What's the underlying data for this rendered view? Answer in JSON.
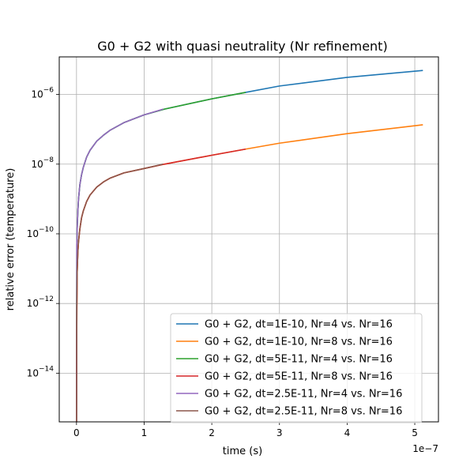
{
  "chart_data": {
    "type": "line",
    "title": "G0 + G2 with quasi neutrality (Nr refinement)",
    "xlabel": "time (s)",
    "ylabel": "relative error (temperature)",
    "x_offset_label": "1e−7",
    "xlim": [
      -2.55e-08,
      5.35e-07
    ],
    "ylim": [
      4e-16,
      1.2e-05
    ],
    "yscale": "log",
    "grid": true,
    "legend_position": "lower-right",
    "x_ticks": [
      {
        "value": 0,
        "label": "0"
      },
      {
        "value": 1e-07,
        "label": "1"
      },
      {
        "value": 2e-07,
        "label": "2"
      },
      {
        "value": 3e-07,
        "label": "3"
      },
      {
        "value": 4e-07,
        "label": "4"
      },
      {
        "value": 5e-07,
        "label": "5"
      }
    ],
    "y_ticks": [
      {
        "value": 1e-14,
        "base": "10",
        "exp": "−14"
      },
      {
        "value": 1e-12,
        "base": "10",
        "exp": "−12"
      },
      {
        "value": 1e-10,
        "base": "10",
        "exp": "−10"
      },
      {
        "value": 1e-08,
        "base": "10",
        "exp": "−8"
      },
      {
        "value": 1e-06,
        "base": "10",
        "exp": "−6"
      }
    ],
    "series": [
      {
        "name": "G0 + G2, dt=1E-10, Nr=4 vs. Nr=16",
        "color": "#1f77b4",
        "x": [
          0,
          5e-10,
          1e-09,
          2e-09,
          3e-09,
          5e-09,
          7.5e-09,
          1e-08,
          1.5e-08,
          2e-08,
          3e-08,
          4e-08,
          5e-08,
          7e-08,
          1e-07,
          1.3e-07,
          2e-07,
          2.5e-07,
          3e-07,
          4e-07,
          5.12e-07
        ],
        "y": [
          4e-16,
          5e-11,
          1.4e-10,
          4.5e-10,
          1e-09,
          2.6e-09,
          5e-09,
          8e-09,
          1.6e-08,
          2.5e-08,
          4.6e-08,
          6.8e-08,
          9.5e-08,
          1.55e-07,
          2.6e-07,
          3.8e-07,
          7.5e-07,
          1.15e-06,
          1.75e-06,
          3.1e-06,
          4.9e-06
        ]
      },
      {
        "name": "G0 + G2, dt=1E-10, Nr=8 vs. Nr=16",
        "color": "#ff7f0e",
        "x": [
          0,
          5e-10,
          1e-09,
          2e-09,
          3e-09,
          5e-09,
          7.5e-09,
          1e-08,
          1.5e-08,
          2e-08,
          3e-08,
          4e-08,
          5e-08,
          7e-08,
          1e-07,
          1.3e-07,
          2e-07,
          2.5e-07,
          3e-07,
          4e-07,
          5.12e-07
        ],
        "y": [
          4e-16,
          8e-13,
          8e-12,
          3e-11,
          6e-11,
          1.4e-10,
          2.9e-10,
          4.5e-10,
          8.5e-10,
          1.3e-09,
          2.2e-09,
          3.1e-09,
          4e-09,
          5.6e-09,
          7.5e-09,
          1e-08,
          1.8e-08,
          2.7e-08,
          4e-08,
          7.5e-08,
          1.35e-07
        ]
      },
      {
        "name": "G0 + G2, dt=5E-11, Nr=4 vs. Nr=16",
        "color": "#2ca02c",
        "x": [
          0,
          5e-10,
          1e-09,
          2e-09,
          3e-09,
          5e-09,
          7.5e-09,
          1e-08,
          1.5e-08,
          2e-08,
          3e-08,
          4e-08,
          5e-08,
          7e-08,
          1e-07,
          1.3e-07,
          2e-07,
          2.5e-07
        ],
        "y": [
          4e-16,
          5e-11,
          1.4e-10,
          4.5e-10,
          1e-09,
          2.6e-09,
          5e-09,
          8e-09,
          1.6e-08,
          2.5e-08,
          4.6e-08,
          6.8e-08,
          9.5e-08,
          1.55e-07,
          2.6e-07,
          3.8e-07,
          7.5e-07,
          1.15e-06
        ]
      },
      {
        "name": "G0 + G2, dt=5E-11, Nr=8 vs. Nr=16",
        "color": "#d62728",
        "x": [
          0,
          5e-10,
          1e-09,
          2e-09,
          3e-09,
          5e-09,
          7.5e-09,
          1e-08,
          1.5e-08,
          2e-08,
          3e-08,
          4e-08,
          5e-08,
          7e-08,
          1e-07,
          1.3e-07,
          2e-07,
          2.5e-07
        ],
        "y": [
          4e-16,
          8e-13,
          8e-12,
          3e-11,
          6e-11,
          1.4e-10,
          2.9e-10,
          4.5e-10,
          8.5e-10,
          1.3e-09,
          2.2e-09,
          3.1e-09,
          4e-09,
          5.6e-09,
          7.5e-09,
          1e-08,
          1.8e-08,
          2.7e-08
        ]
      },
      {
        "name": "G0 + G2, dt=2.5E-11, Nr=4 vs. Nr=16",
        "color": "#9467bd",
        "x": [
          0,
          5e-10,
          1e-09,
          2e-09,
          3e-09,
          5e-09,
          7.5e-09,
          1e-08,
          1.5e-08,
          2e-08,
          3e-08,
          4e-08,
          5e-08,
          7e-08,
          1e-07,
          1.28e-07
        ],
        "y": [
          4e-16,
          5e-11,
          1.4e-10,
          4.5e-10,
          1e-09,
          2.6e-09,
          5e-09,
          8e-09,
          1.6e-08,
          2.5e-08,
          4.6e-08,
          6.8e-08,
          9.5e-08,
          1.55e-07,
          2.6e-07,
          3.8e-07
        ]
      },
      {
        "name": "G0 + G2, dt=2.5E-11, Nr=8 vs. Nr=16",
        "color": "#8c564b",
        "x": [
          0,
          5e-10,
          1e-09,
          2e-09,
          3e-09,
          5e-09,
          7.5e-09,
          1e-08,
          1.5e-08,
          2e-08,
          3e-08,
          4e-08,
          5e-08,
          7e-08,
          1e-07,
          1.28e-07
        ],
        "y": [
          4e-16,
          8e-13,
          8e-12,
          3e-11,
          6e-11,
          1.4e-10,
          2.9e-10,
          4.5e-10,
          8.5e-10,
          1.3e-09,
          2.2e-09,
          3.1e-09,
          4e-09,
          5.6e-09,
          7.5e-09,
          1e-08
        ]
      }
    ]
  }
}
